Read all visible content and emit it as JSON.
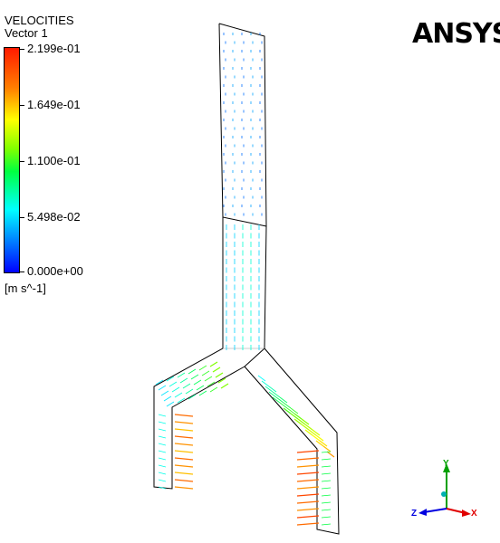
{
  "legend": {
    "title": "VELOCITIES",
    "subtitle": "Vector 1",
    "ticks": [
      "2.199e-01",
      "1.649e-01",
      "1.100e-01",
      "5.498e-02",
      "0.000e+00"
    ],
    "unit": "[m s^-1]"
  },
  "brand": "ANSYS",
  "axes": {
    "x": "X",
    "y": "Y",
    "z": "Z"
  },
  "colors": {
    "low": "#0000ff",
    "mid": "#00ffff",
    "high": "#ff0000",
    "x_axis": "#e00000",
    "y_axis": "#00a000",
    "z_axis": "#0000e0"
  }
}
